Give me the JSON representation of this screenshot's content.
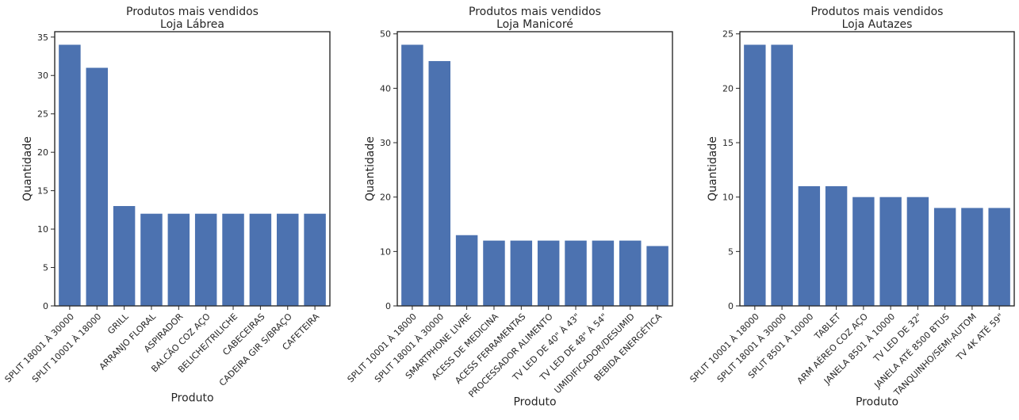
{
  "chart_data": [
    {
      "type": "bar",
      "title": "Produtos mais vendidos",
      "subtitle": "Loja Lábrea",
      "xlabel": "Produto",
      "ylabel": "Quantidade",
      "ylim": [
        0,
        35.7
      ],
      "yticks": [
        0,
        5,
        10,
        15,
        20,
        25,
        30,
        35
      ],
      "categories": [
        "SPLIT 18001 À 30000",
        "SPLIT 10001 À 18000",
        "GRILL",
        "ARRANJO FLORAL",
        "ASPIRADOR",
        "BALCÃO COZ AÇO",
        "BELICHE/TRILICHE",
        "CABECEIRAS",
        "CADEIRA GIR S/BRAÇO",
        "CAFETEIRA"
      ],
      "values": [
        34,
        31,
        13,
        12,
        12,
        12,
        12,
        12,
        12,
        12
      ],
      "color": "#4c72b0"
    },
    {
      "type": "bar",
      "title": "Produtos mais vendidos",
      "subtitle": "Loja Manicoré",
      "xlabel": "Produto",
      "ylabel": "Quantidade",
      "ylim": [
        0,
        50.4
      ],
      "yticks": [
        0,
        10,
        20,
        30,
        40,
        50
      ],
      "categories": [
        "SPLIT 10001 À 18000",
        "SPLIT 18001 À 30000",
        "SMARTPHONE LIVRE",
        "ACESS DE MEDICINA",
        "ACESS FERRAMENTAS",
        "PROCESSADOR ALIMENTO",
        "TV LED DE 40\" À 43\"",
        "TV LED DE 48\" À 54\"",
        "UMIDIFICADOR/DESUMID",
        "BEBIDA ENERGÉTICA"
      ],
      "values": [
        48,
        45,
        13,
        12,
        12,
        12,
        12,
        12,
        12,
        11
      ],
      "color": "#4c72b0"
    },
    {
      "type": "bar",
      "title": "Produtos mais vendidos",
      "subtitle": "Loja Autazes",
      "xlabel": "Produto",
      "ylabel": "Quantidade",
      "ylim": [
        0,
        25.2
      ],
      "yticks": [
        0,
        5,
        10,
        15,
        20,
        25
      ],
      "categories": [
        "SPLIT 10001 À 18000",
        "SPLIT 18001 À 30000",
        "SPLIT 8501 À 10000",
        "TABLET",
        "ARM AÉREO COZ AÇO",
        "JANELA 8501 À 10000",
        "TV LED DE 32\"",
        "JANELA ATÉ 8500 BTUS",
        "TANQUINHO/SEMI-AUTOM",
        "TV 4K ATÉ 59\""
      ],
      "values": [
        24,
        24,
        11,
        11,
        10,
        10,
        10,
        9,
        9,
        9
      ],
      "color": "#4c72b0"
    }
  ]
}
